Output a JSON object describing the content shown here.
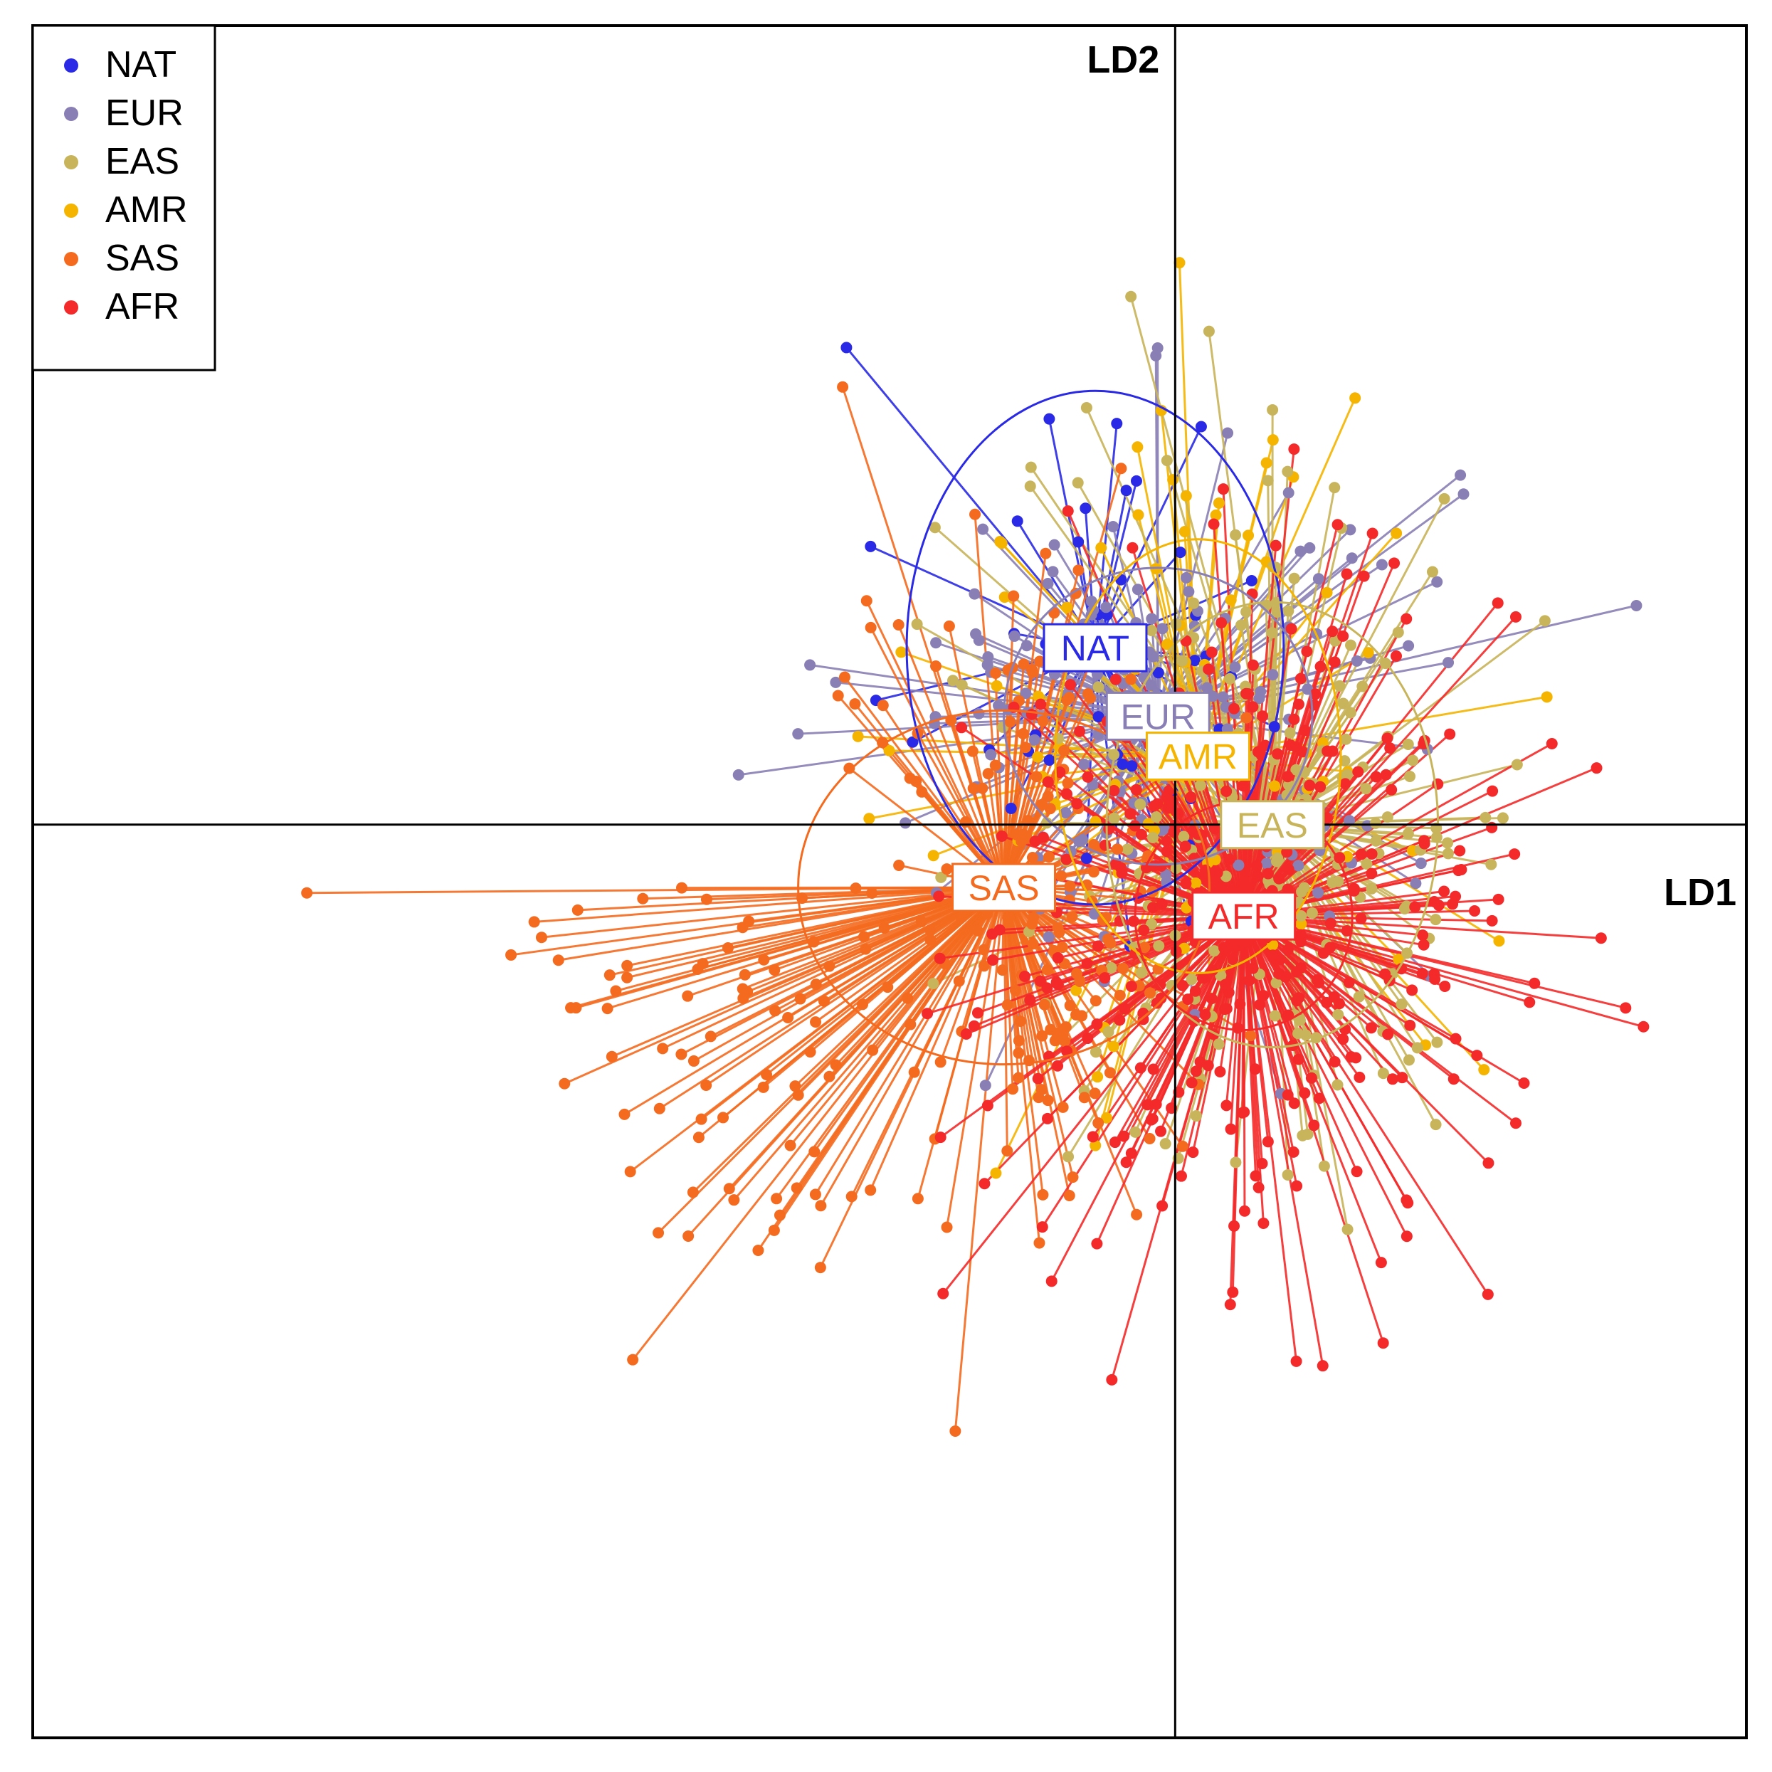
{
  "chart_data": {
    "type": "scatter",
    "xlabel": "LD1",
    "ylabel": "LD2",
    "xlim": [
      -10,
      5
    ],
    "ylim": [
      -8,
      7
    ],
    "grid": false,
    "legend_position": "top-left",
    "legend": [
      {
        "label": "NAT",
        "color": "#2a2ae6"
      },
      {
        "label": "EUR",
        "color": "#8a7fb5"
      },
      {
        "label": "EAS",
        "color": "#c8b45a"
      },
      {
        "label": "AMR",
        "color": "#f4b400"
      },
      {
        "label": "SAS",
        "color": "#f46a1e"
      },
      {
        "label": "AFR",
        "color": "#f42a2a"
      }
    ],
    "series": [
      {
        "name": "NAT",
        "color": "#2a2ae6",
        "centroid": [
          -0.7,
          1.55
        ],
        "ellipse_radii": [
          1.65,
          2.25
        ],
        "count": 45,
        "spread": [
          0.9,
          1.35
        ]
      },
      {
        "name": "EUR",
        "color": "#8a7fb5",
        "centroid": [
          -0.15,
          0.95
        ],
        "ellipse_radii": [
          1.35,
          1.3
        ],
        "count": 160,
        "spread": [
          1.3,
          1.25
        ]
      },
      {
        "name": "EAS",
        "color": "#c8b45a",
        "centroid": [
          0.85,
          0.0
        ],
        "ellipse_radii": [
          1.45,
          1.95
        ],
        "count": 210,
        "spread": [
          1.15,
          1.65
        ]
      },
      {
        "name": "AMR",
        "color": "#f4b400",
        "centroid": [
          0.2,
          0.6
        ],
        "ellipse_radii": [
          1.25,
          1.9
        ],
        "count": 85,
        "spread": [
          1.2,
          1.6
        ]
      },
      {
        "name": "SAS",
        "color": "#f46a1e",
        "centroid": [
          -1.5,
          -0.55
        ],
        "ellipse_radii": [
          1.8,
          1.55
        ],
        "count": 260,
        "spread": [
          2.1,
          1.45
        ]
      },
      {
        "name": "AFR",
        "color": "#f42a2a",
        "centroid": [
          0.6,
          -0.8
        ],
        "ellipse_radii": [
          0.95,
          1.0
        ],
        "count": 380,
        "spread": [
          1.2,
          1.45
        ]
      }
    ]
  }
}
